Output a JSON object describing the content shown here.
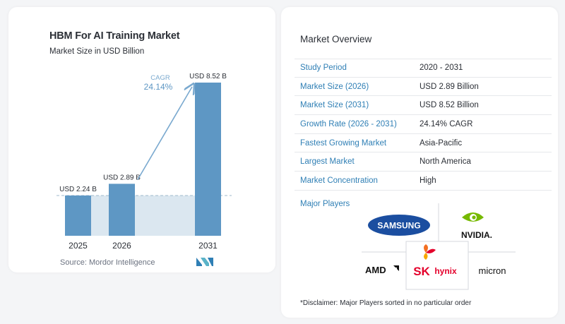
{
  "chart_data": {
    "type": "bar",
    "title": "HBM For AI Training Market",
    "subtitle": "Market Size in USD Billion",
    "categories": [
      "2025",
      "2026",
      "2031"
    ],
    "values": [
      2.24,
      2.89,
      8.52
    ],
    "value_labels": [
      "USD 2.24 B",
      "USD 2.89 B",
      "USD 8.52 B"
    ],
    "ylim": [
      0,
      8.52
    ],
    "cagr_label": "CAGR",
    "cagr_value": "24.14%",
    "grid": false,
    "colors": {
      "bar": "#5e97c4",
      "shade": "#dbe7f0",
      "arrow": "#7aa9cf",
      "dash": "#9fb8cc"
    }
  },
  "source": "Source:  Mordor Intelligence",
  "overview": {
    "title": "Market Overview",
    "rows": [
      {
        "key": "Study Period",
        "value": "2020 - 2031"
      },
      {
        "key": "Market Size (2026)",
        "value": "USD 2.89 Billion"
      },
      {
        "key": "Market Size (2031)",
        "value": "USD 8.52 Billion"
      },
      {
        "key": "Growth Rate (2026 - 2031)",
        "value": "24.14% CAGR"
      },
      {
        "key": "Fastest Growing Market",
        "value": "Asia-Pacific"
      },
      {
        "key": "Largest Market",
        "value": "North America"
      },
      {
        "key": "Market Concentration",
        "value": "High"
      }
    ]
  },
  "players": {
    "title": "Major Players",
    "samsung": "SAMSUNG",
    "nvidia": "NVIDIA.",
    "amd": "AMD",
    "sk": "SK",
    "hynix": "hynix",
    "micron": "micron"
  },
  "disclaimer": "*Disclaimer: Major Players sorted in no particular order",
  "accent": "#2f7fb5"
}
